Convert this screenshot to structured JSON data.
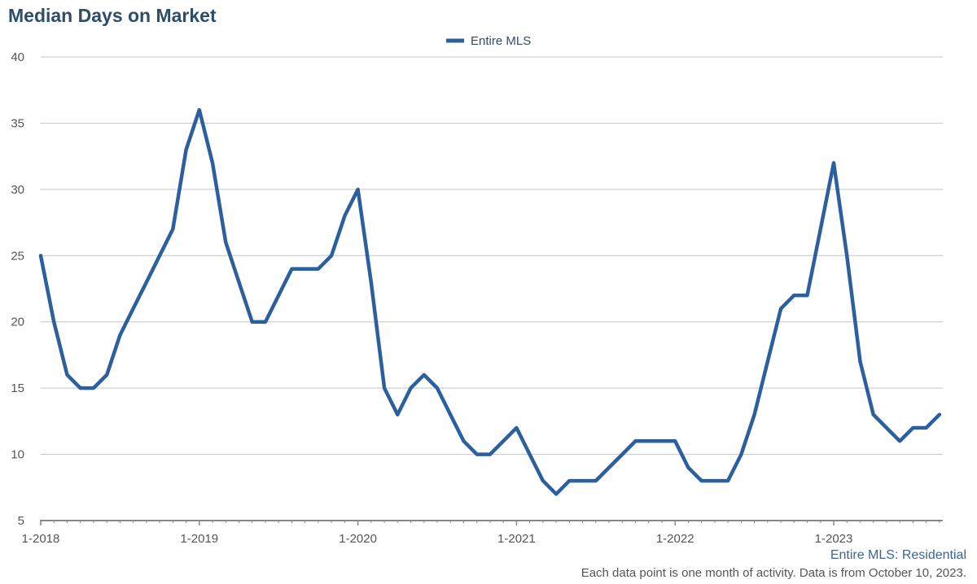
{
  "chart_data": {
    "type": "line",
    "title": "Median Days on Market",
    "xlabel": "",
    "ylabel": "",
    "ylim": [
      5,
      40
    ],
    "yticks": [
      5,
      10,
      15,
      20,
      25,
      30,
      35,
      40
    ],
    "x_tick_labels": [
      "1-2018",
      "1-2019",
      "1-2020",
      "1-2021",
      "1-2022",
      "1-2023"
    ],
    "grid": true,
    "legend_position": "top-center",
    "color": "#2c5f9e",
    "x": [
      "1-2018",
      "2-2018",
      "3-2018",
      "4-2018",
      "5-2018",
      "6-2018",
      "7-2018",
      "8-2018",
      "9-2018",
      "10-2018",
      "11-2018",
      "12-2018",
      "1-2019",
      "2-2019",
      "3-2019",
      "4-2019",
      "5-2019",
      "6-2019",
      "7-2019",
      "8-2019",
      "9-2019",
      "10-2019",
      "11-2019",
      "12-2019",
      "1-2020",
      "2-2020",
      "3-2020",
      "4-2020",
      "5-2020",
      "6-2020",
      "7-2020",
      "8-2020",
      "9-2020",
      "10-2020",
      "11-2020",
      "12-2020",
      "1-2021",
      "2-2021",
      "3-2021",
      "4-2021",
      "5-2021",
      "6-2021",
      "7-2021",
      "8-2021",
      "9-2021",
      "10-2021",
      "11-2021",
      "12-2021",
      "1-2022",
      "2-2022",
      "3-2022",
      "4-2022",
      "5-2022",
      "6-2022",
      "7-2022",
      "8-2022",
      "9-2022",
      "10-2022",
      "11-2022",
      "12-2022",
      "1-2023",
      "2-2023",
      "3-2023",
      "4-2023",
      "5-2023",
      "6-2023",
      "7-2023",
      "8-2023",
      "9-2023"
    ],
    "series": [
      {
        "name": "Entire MLS",
        "values": [
          25,
          20,
          16,
          15,
          15,
          16,
          19,
          21,
          23,
          25,
          27,
          33,
          36,
          32,
          26,
          23,
          20,
          20,
          22,
          24,
          24,
          24,
          25,
          28,
          30,
          23,
          15,
          13,
          15,
          16,
          15,
          13,
          11,
          10,
          10,
          11,
          12,
          10,
          8,
          7,
          8,
          8,
          8,
          9,
          10,
          11,
          11,
          11,
          11,
          9,
          8,
          8,
          8,
          10,
          13,
          17,
          21,
          22,
          22,
          27,
          32,
          25,
          17,
          13,
          12,
          11,
          12,
          12,
          13
        ]
      }
    ]
  },
  "source_note": "Entire MLS: Residential",
  "footnote": "Each data point is one month of activity. Data is from October 10, 2023."
}
